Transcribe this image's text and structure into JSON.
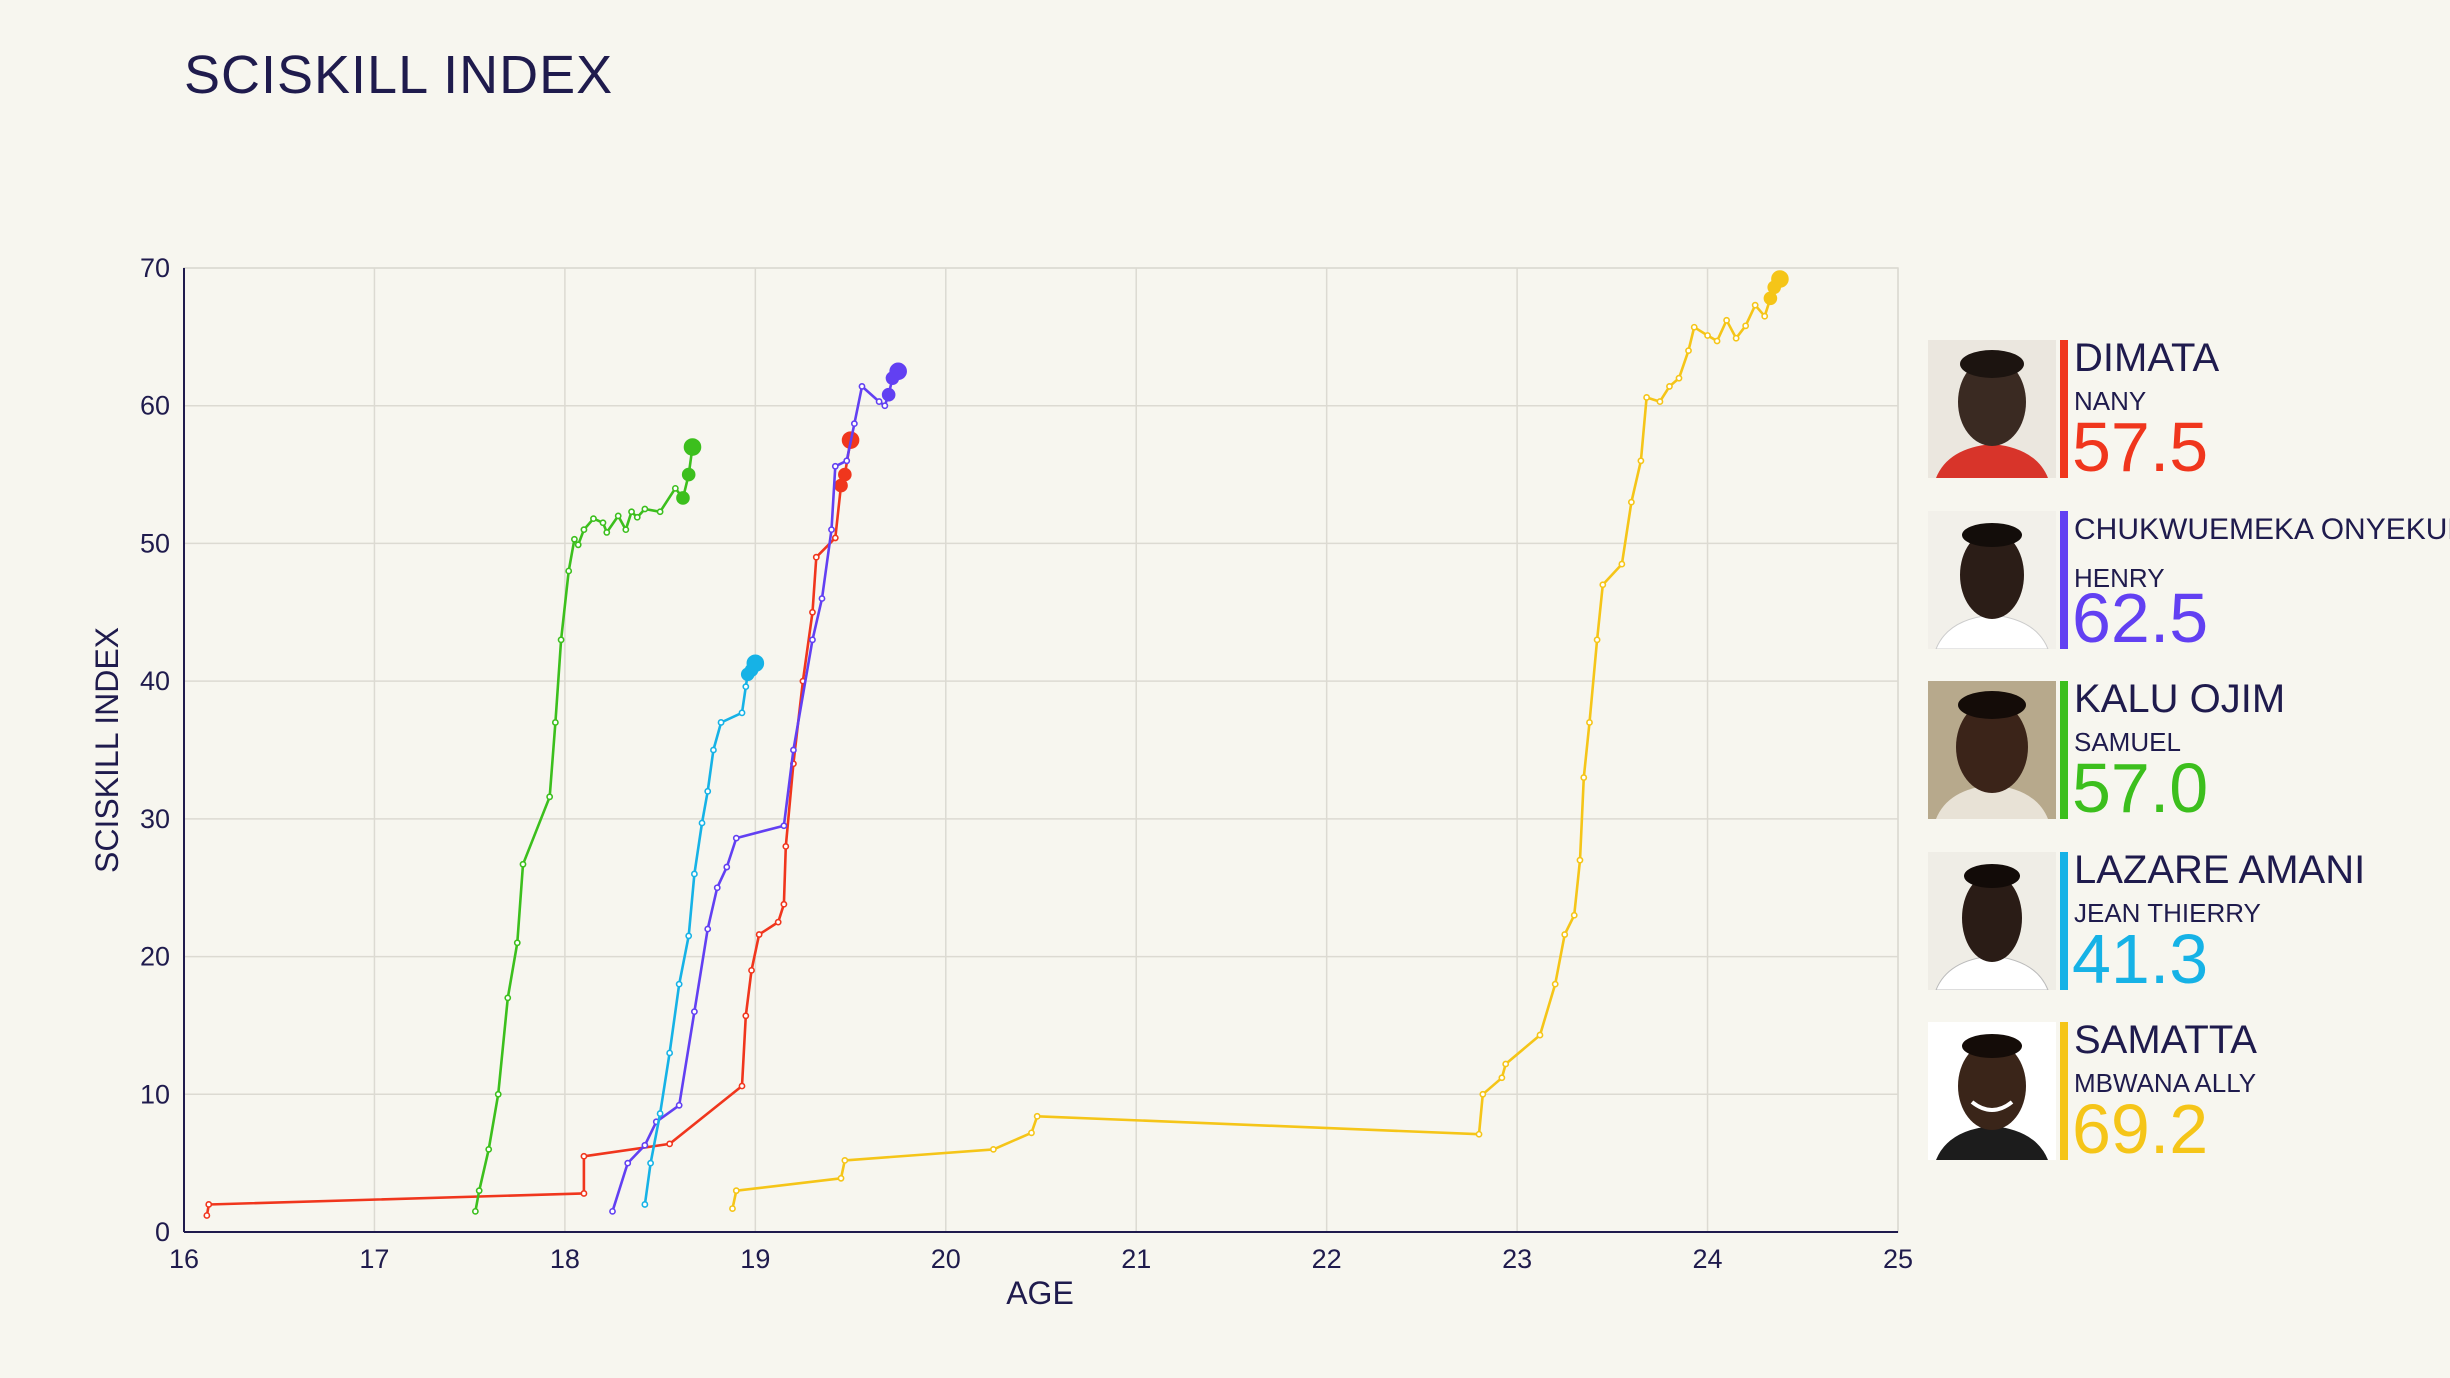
{
  "title": "SCISKILL INDEX",
  "chart_data": {
    "type": "line",
    "title": "SCISKILL INDEX",
    "xlabel": "AGE",
    "ylabel": "SCISKILL INDEX",
    "xlim": [
      16,
      25
    ],
    "ylim": [
      0,
      70
    ],
    "xticks": [
      16,
      17,
      18,
      19,
      20,
      21,
      22,
      23,
      24,
      25
    ],
    "yticks": [
      0,
      10,
      20,
      30,
      40,
      50,
      60,
      70
    ],
    "grid": true,
    "legend": "right",
    "series": [
      {
        "name": "DIMATA",
        "color": "#f0361d",
        "points": [
          [
            16.12,
            1.2
          ],
          [
            16.13,
            2.0
          ],
          [
            18.1,
            2.8
          ],
          [
            18.1,
            5.5
          ],
          [
            18.55,
            6.4
          ],
          [
            18.93,
            10.6
          ],
          [
            18.95,
            15.7
          ],
          [
            18.98,
            19.0
          ],
          [
            19.02,
            21.6
          ],
          [
            19.12,
            22.5
          ],
          [
            19.15,
            23.8
          ],
          [
            19.16,
            28.0
          ],
          [
            19.2,
            34.0
          ],
          [
            19.25,
            40.0
          ],
          [
            19.3,
            45.0
          ],
          [
            19.32,
            49.0
          ],
          [
            19.42,
            50.4
          ],
          [
            19.45,
            54.2
          ],
          [
            19.47,
            55.0
          ],
          [
            19.5,
            57.5
          ]
        ]
      },
      {
        "name": "CHUKWUEMEKA ONYEKURU",
        "color": "#6240f2",
        "points": [
          [
            18.25,
            1.5
          ],
          [
            18.33,
            5.0
          ],
          [
            18.42,
            6.3
          ],
          [
            18.48,
            8.0
          ],
          [
            18.6,
            9.2
          ],
          [
            18.68,
            16.0
          ],
          [
            18.75,
            22.0
          ],
          [
            18.8,
            25.0
          ],
          [
            18.85,
            26.5
          ],
          [
            18.9,
            28.6
          ],
          [
            19.15,
            29.5
          ],
          [
            19.2,
            35.0
          ],
          [
            19.3,
            43.0
          ],
          [
            19.35,
            46.0
          ],
          [
            19.4,
            51.0
          ],
          [
            19.42,
            55.6
          ],
          [
            19.48,
            56.0
          ],
          [
            19.52,
            58.7
          ],
          [
            19.56,
            61.4
          ],
          [
            19.65,
            60.3
          ],
          [
            19.68,
            60.0
          ],
          [
            19.7,
            60.8
          ],
          [
            19.72,
            62.0
          ],
          [
            19.75,
            62.5
          ]
        ]
      },
      {
        "name": "KALU OJIM",
        "color": "#3cbf1d",
        "points": [
          [
            17.53,
            1.5
          ],
          [
            17.55,
            3.0
          ],
          [
            17.6,
            6.0
          ],
          [
            17.65,
            10.0
          ],
          [
            17.7,
            17.0
          ],
          [
            17.75,
            21.0
          ],
          [
            17.78,
            26.7
          ],
          [
            17.92,
            31.6
          ],
          [
            17.95,
            37.0
          ],
          [
            17.98,
            43.0
          ],
          [
            18.02,
            48.0
          ],
          [
            18.05,
            50.3
          ],
          [
            18.07,
            49.9
          ],
          [
            18.1,
            51.0
          ],
          [
            18.15,
            51.8
          ],
          [
            18.2,
            51.5
          ],
          [
            18.22,
            50.8
          ],
          [
            18.28,
            52.0
          ],
          [
            18.32,
            51.0
          ],
          [
            18.35,
            52.3
          ],
          [
            18.38,
            51.9
          ],
          [
            18.42,
            52.5
          ],
          [
            18.5,
            52.3
          ],
          [
            18.58,
            54.0
          ],
          [
            18.62,
            53.3
          ],
          [
            18.65,
            55.0
          ],
          [
            18.67,
            57.0
          ]
        ]
      },
      {
        "name": "LAZARE AMANI",
        "color": "#16b2e6",
        "points": [
          [
            18.42,
            2.0
          ],
          [
            18.45,
            5.0
          ],
          [
            18.5,
            8.6
          ],
          [
            18.55,
            13.0
          ],
          [
            18.6,
            18.0
          ],
          [
            18.65,
            21.5
          ],
          [
            18.68,
            26.0
          ],
          [
            18.72,
            29.7
          ],
          [
            18.75,
            32.0
          ],
          [
            18.78,
            35.0
          ],
          [
            18.82,
            37.0
          ],
          [
            18.93,
            37.7
          ],
          [
            18.95,
            39.6
          ],
          [
            18.96,
            40.5
          ],
          [
            18.98,
            40.8
          ],
          [
            19.0,
            41.3
          ]
        ]
      },
      {
        "name": "SAMATTA",
        "color": "#f5c518",
        "points": [
          [
            18.88,
            1.7
          ],
          [
            18.9,
            3.0
          ],
          [
            19.45,
            3.9
          ],
          [
            19.47,
            5.2
          ],
          [
            20.25,
            6.0
          ],
          [
            20.45,
            7.2
          ],
          [
            20.48,
            8.4
          ],
          [
            22.8,
            7.1
          ],
          [
            22.82,
            10.0
          ],
          [
            22.92,
            11.2
          ],
          [
            22.94,
            12.2
          ],
          [
            23.12,
            14.3
          ],
          [
            23.2,
            18.0
          ],
          [
            23.25,
            21.6
          ],
          [
            23.3,
            23.0
          ],
          [
            23.33,
            27.0
          ],
          [
            23.35,
            33.0
          ],
          [
            23.38,
            37.0
          ],
          [
            23.42,
            43.0
          ],
          [
            23.45,
            47.0
          ],
          [
            23.55,
            48.5
          ],
          [
            23.6,
            53.0
          ],
          [
            23.65,
            56.0
          ],
          [
            23.68,
            60.6
          ],
          [
            23.75,
            60.3
          ],
          [
            23.8,
            61.4
          ],
          [
            23.85,
            62.0
          ],
          [
            23.9,
            64.0
          ],
          [
            23.93,
            65.7
          ],
          [
            24.0,
            65.1
          ],
          [
            24.05,
            64.7
          ],
          [
            24.1,
            66.2
          ],
          [
            24.15,
            64.9
          ],
          [
            24.2,
            65.8
          ],
          [
            24.25,
            67.3
          ],
          [
            24.3,
            66.5
          ],
          [
            24.33,
            67.8
          ],
          [
            24.35,
            68.6
          ],
          [
            24.38,
            69.2
          ]
        ]
      }
    ]
  },
  "players": [
    {
      "surname": "DIMATA",
      "firstname": "NANY",
      "score": "57.5",
      "color": "#f0361d"
    },
    {
      "surname": "CHUKWUEMEKA ONYEKURU",
      "firstname": "HENRY",
      "score": "62.5",
      "color": "#6240f2"
    },
    {
      "surname": "KALU OJIM",
      "firstname": "SAMUEL",
      "score": "57.0",
      "color": "#3cbf1d"
    },
    {
      "surname": "LAZARE AMANI",
      "firstname": "JEAN THIERRY",
      "score": "41.3",
      "color": "#16b2e6"
    },
    {
      "surname": "SAMATTA",
      "firstname": "MBWANA ALLY",
      "score": "69.2",
      "color": "#f5c518"
    }
  ]
}
